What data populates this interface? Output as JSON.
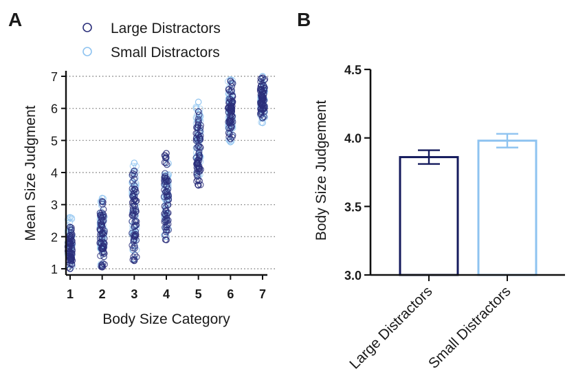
{
  "chart_data": [
    {
      "panel": "A",
      "type": "scatter",
      "title": "",
      "xlabel": "Body Size Category",
      "ylabel": "Mean Size Judgment",
      "categories": [
        "1",
        "2",
        "3",
        "4",
        "5",
        "6",
        "7"
      ],
      "x": [
        1,
        2,
        3,
        4,
        5,
        6,
        7
      ],
      "xlim": [
        1,
        7
      ],
      "ylim": [
        1,
        7
      ],
      "yticks": [
        "1",
        "2",
        "3",
        "4",
        "5",
        "6",
        "7"
      ],
      "grid": "horizontal dotted",
      "legend_position": "top",
      "series": [
        {
          "name": "Large Distractors",
          "color": "#2b2f7a",
          "marker": "open-circle",
          "ranges": [
            [
              1.0,
              2.3
            ],
            [
              1.05,
              3.1
            ],
            [
              1.25,
              4.05
            ],
            [
              1.9,
              4.6
            ],
            [
              3.6,
              5.9
            ],
            [
              5.05,
              6.85
            ],
            [
              5.7,
              6.95
            ]
          ]
        },
        {
          "name": "Small Distractors",
          "color": "#8ec3f0",
          "marker": "open-circle",
          "ranges": [
            [
              1.0,
              2.6
            ],
            [
              1.1,
              3.2
            ],
            [
              1.3,
              4.3
            ],
            [
              2.0,
              4.45
            ],
            [
              3.9,
              6.2
            ],
            [
              4.95,
              6.9
            ],
            [
              5.55,
              7.0
            ]
          ]
        }
      ]
    },
    {
      "panel": "B",
      "type": "bar",
      "title": "",
      "xlabel": "",
      "ylabel": "Body Size  Judgement",
      "categories": [
        "Large Distractors",
        "Small Distractors"
      ],
      "values": [
        3.86,
        3.98
      ],
      "errors": [
        0.05,
        0.05
      ],
      "ylim": [
        3.0,
        4.5
      ],
      "yticks": [
        "3.0",
        "3.5",
        "4.0",
        "4.5"
      ],
      "colors": [
        "#141a5c",
        "#8ec3f0"
      ],
      "fill": "none"
    }
  ]
}
